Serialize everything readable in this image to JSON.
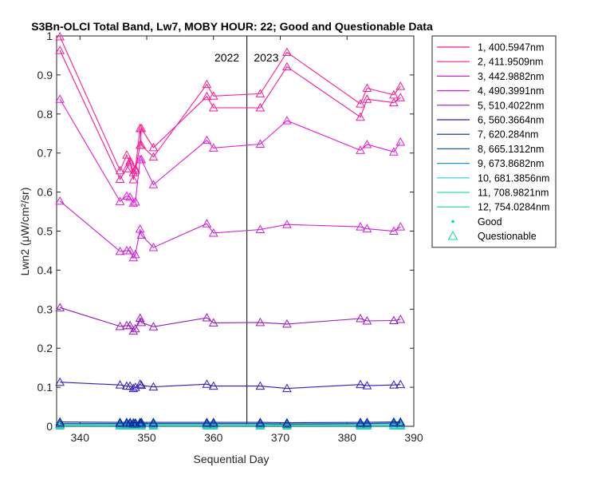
{
  "chart_data": {
    "type": "line",
    "title": "S3Bn-OLCI Total Band, Lw7, MOBY HOUR: 22;  Good and Questionable Data",
    "xlabel": "Sequential Day",
    "ylabel": "Lwn2 (μW/cm²/sr)",
    "xlim": [
      336.5,
      390
    ],
    "ylim": [
      0,
      1
    ],
    "xticks": [
      "340",
      "350",
      "360",
      "370",
      "380",
      "390"
    ],
    "yticks": [
      "0",
      "0.1",
      "0.2",
      "0.3",
      "0.4",
      "0.5",
      "0.6",
      "0.7",
      "0.8",
      "0.9",
      "1"
    ],
    "grid": false,
    "legend_location": "outside-top-right",
    "vline": {
      "x": 365
    },
    "annotations": [
      {
        "text": "2022",
        "x": 362,
        "y": 0.945
      },
      {
        "text": "2023",
        "x": 367.9,
        "y": 0.945
      }
    ],
    "x": [
      337,
      346,
      347,
      347.5,
      348,
      348.3,
      349,
      349.2,
      351,
      359,
      360,
      367,
      371,
      382,
      383,
      387,
      388
    ],
    "series": [
      {
        "name": "1, 400.5947nm",
        "color": "#ff1493",
        "values": [
          0.963,
          0.633,
          0.66,
          0.68,
          0.632,
          0.656,
          0.72,
          0.763,
          0.714,
          0.845,
          0.816,
          0.816,
          0.921,
          0.792,
          0.838,
          0.829,
          0.842
        ]
      },
      {
        "name": "2, 411.9509nm",
        "color": "#ff1c8c",
        "values": [
          0.998,
          0.655,
          0.695,
          0.675,
          0.65,
          0.66,
          0.763,
          0.72,
          0.69,
          0.876,
          0.846,
          0.852,
          0.958,
          0.826,
          0.866,
          0.849,
          0.871
        ]
      },
      {
        "name": "3, 442.9882nm",
        "color": "#e619dd",
        "values": [
          0.838,
          0.576,
          0.59,
          0.587,
          0.572,
          0.575,
          0.683,
          0.683,
          0.619,
          0.733,
          0.713,
          0.723,
          0.783,
          0.707,
          0.722,
          0.703,
          0.728
        ]
      },
      {
        "name": "4, 490.3991nm",
        "color": "#d21dde",
        "values": [
          0.577,
          0.448,
          0.45,
          0.45,
          0.432,
          0.44,
          0.505,
          0.49,
          0.458,
          0.519,
          0.495,
          0.504,
          0.517,
          0.511,
          0.506,
          0.5,
          0.511
        ]
      },
      {
        "name": "5, 510.4022nm",
        "color": "#9b19c8",
        "values": [
          0.304,
          0.256,
          0.258,
          0.258,
          0.244,
          0.25,
          0.277,
          0.266,
          0.255,
          0.278,
          0.265,
          0.266,
          0.262,
          0.276,
          0.27,
          0.271,
          0.274
        ]
      },
      {
        "name": "6, 560.3664nm",
        "color": "#3219c8",
        "values": [
          0.113,
          0.106,
          0.103,
          0.103,
          0.097,
          0.1,
          0.108,
          0.105,
          0.101,
          0.108,
          0.103,
          0.103,
          0.097,
          0.107,
          0.104,
          0.106,
          0.107
        ]
      },
      {
        "name": "7,  620.284nm",
        "color": "#0a1ea0",
        "values": [
          0.011,
          0.01,
          0.01,
          0.01,
          0.009,
          0.009,
          0.01,
          0.01,
          0.01,
          0.01,
          0.01,
          0.01,
          0.009,
          0.01,
          0.01,
          0.011,
          0.011
        ]
      },
      {
        "name": "8, 665.1312nm",
        "color": "#1e5ab4",
        "values": [
          0.007,
          0.007,
          0.007,
          0.007,
          0.006,
          0.006,
          0.007,
          0.007,
          0.007,
          0.007,
          0.007,
          0.007,
          0.006,
          0.007,
          0.007,
          0.008,
          0.008
        ]
      },
      {
        "name": "9, 673.8682nm",
        "color": "#1e96dc",
        "values": [
          0.006,
          0.006,
          0.006,
          0.006,
          0.005,
          0.005,
          0.006,
          0.006,
          0.006,
          0.006,
          0.006,
          0.006,
          0.005,
          0.006,
          0.006,
          0.007,
          0.007
        ]
      },
      {
        "name": "10, 681.3856nm",
        "color": "#28d2d2",
        "values": [
          0.006,
          0.006,
          0.006,
          0.006,
          0.005,
          0.005,
          0.006,
          0.006,
          0.006,
          0.006,
          0.006,
          0.006,
          0.005,
          0.006,
          0.006,
          0.006,
          0.006
        ]
      },
      {
        "name": "11, 708.9821nm",
        "color": "#28e6b4",
        "values": [
          0.003,
          0.003,
          0.003,
          0.003,
          0.003,
          0.003,
          0.003,
          0.003,
          0.003,
          0.003,
          0.003,
          0.003,
          0.003,
          0.003,
          0.003,
          0.003,
          0.003
        ]
      },
      {
        "name": "12, 754.0284nm",
        "color": "#1ed28c",
        "values": [
          0.001,
          0.001,
          0.001,
          0.001,
          0.001,
          0.001,
          0.001,
          0.001,
          0.001,
          0.001,
          0.001,
          0.001,
          0.001,
          0.001,
          0.001,
          0.001,
          0.001
        ]
      }
    ],
    "marker_legend": [
      {
        "label": "Good",
        "marker": "dot",
        "color": "#00e0a0"
      },
      {
        "label": "Questionable",
        "marker": "triangle",
        "color": "#00e0a0"
      }
    ]
  }
}
